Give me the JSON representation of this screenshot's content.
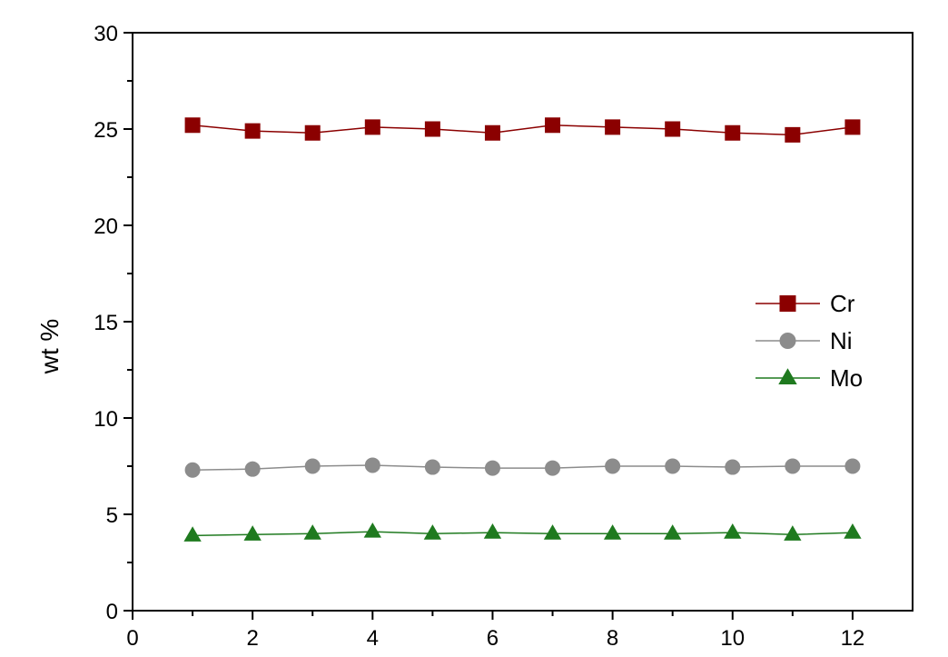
{
  "chart_data": {
    "type": "line",
    "title": "",
    "xlabel": "",
    "ylabel": "wt %",
    "xlim": [
      0,
      13
    ],
    "ylim": [
      0,
      30
    ],
    "x_ticks": [
      0,
      2,
      4,
      6,
      8,
      10,
      12
    ],
    "y_ticks": [
      0,
      5,
      10,
      15,
      20,
      25,
      30
    ],
    "x_tick_labels": [
      "0",
      "2",
      "4",
      "6",
      "8",
      "10",
      "12"
    ],
    "y_tick_labels": [
      "0",
      "5",
      "10",
      "15",
      "20",
      "25",
      "30"
    ],
    "grid": false,
    "legend_position": "right-middle",
    "x": [
      1,
      2,
      3,
      4,
      5,
      6,
      7,
      8,
      9,
      10,
      11,
      12
    ],
    "series": [
      {
        "name": "Cr",
        "marker": "square",
        "color": "#8b0000",
        "values": [
          25.2,
          24.9,
          24.8,
          25.1,
          25.0,
          24.8,
          25.2,
          25.1,
          25.0,
          24.8,
          24.7,
          25.1
        ]
      },
      {
        "name": "Ni",
        "marker": "circle",
        "color": "#8c8c8c",
        "values": [
          7.3,
          7.35,
          7.5,
          7.55,
          7.45,
          7.4,
          7.4,
          7.5,
          7.5,
          7.45,
          7.5,
          7.5
        ]
      },
      {
        "name": "Mo",
        "marker": "triangle",
        "color": "#1f7a1f",
        "values": [
          3.9,
          3.95,
          4.0,
          4.1,
          4.0,
          4.05,
          4.0,
          4.0,
          4.0,
          4.05,
          3.95,
          4.05
        ]
      }
    ]
  }
}
